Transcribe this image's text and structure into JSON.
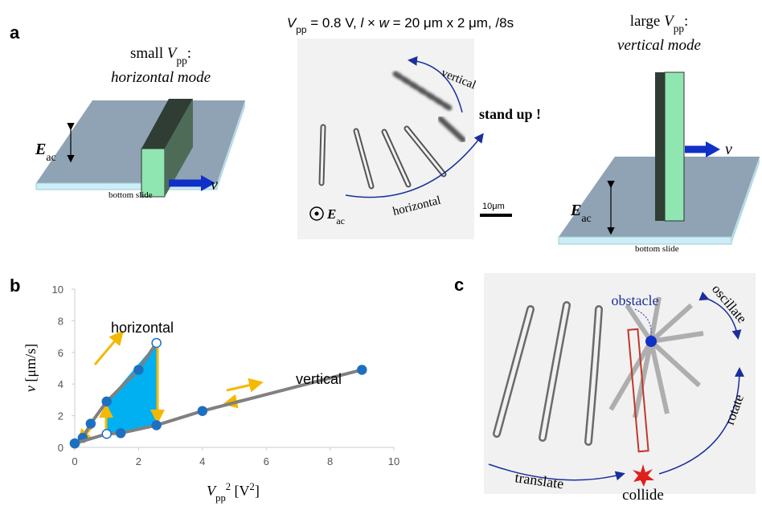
{
  "panel_a": {
    "label": "a",
    "left": {
      "heading": [
        "small ",
        "V",
        "pp",
        ":"
      ],
      "mode": "horizontal mode",
      "field": [
        "E",
        "ac"
      ],
      "velocity": "v",
      "slide": "bottom slide"
    },
    "center": {
      "caption": [
        "V",
        "pp",
        " = 0.8 V, ",
        "l",
        " × ",
        "w",
        " = 20 μm x 2 μm, /8s"
      ],
      "vertical": "vertical",
      "stand_up": "stand up !",
      "horizontal": "horizontal",
      "field": [
        "E",
        "ac"
      ],
      "scale": "10μm"
    },
    "right": {
      "heading": [
        "large ",
        "V",
        "pp",
        ":"
      ],
      "mode": "vertical mode",
      "field": [
        "E",
        "ac"
      ],
      "velocity": "v",
      "slide": "bottom slide"
    }
  },
  "panel_c": {
    "label": "c",
    "obstacle": "obstacle",
    "oscillate": "oscillate",
    "rotate": "rotate",
    "translate": "translate",
    "collide": "collide"
  },
  "chart_data": {
    "type": "line",
    "panel_label": "b",
    "x_label": [
      "V",
      "pp",
      "2",
      " [V",
      "2",
      "]"
    ],
    "y_label": [
      "v",
      " [μm/s]"
    ],
    "xlim": [
      0,
      10
    ],
    "ylim": [
      0,
      10
    ],
    "xticks": [
      0,
      2,
      4,
      6,
      8,
      10
    ],
    "yticks": [
      0,
      2,
      4,
      6,
      8,
      10
    ],
    "series": [
      {
        "name": "horizontal",
        "color": "#1f6fc0",
        "line_color": "#808080",
        "x": [
          0,
          0.25,
          0.5,
          1,
          2,
          2.56
        ],
        "values": [
          0.25,
          0.6,
          1.5,
          2.9,
          4.9,
          6.6
        ],
        "hollow": [
          false,
          false,
          false,
          false,
          false,
          true
        ]
      },
      {
        "name": "vertical",
        "color": "#1f6fc0",
        "line_color": "#808080",
        "x": [
          0,
          1,
          1.44,
          2.56,
          4,
          9
        ],
        "values": [
          0.25,
          0.85,
          0.9,
          1.4,
          2.3,
          4.9
        ],
        "hollow": [
          false,
          true,
          false,
          false,
          false,
          false
        ]
      }
    ]
  }
}
